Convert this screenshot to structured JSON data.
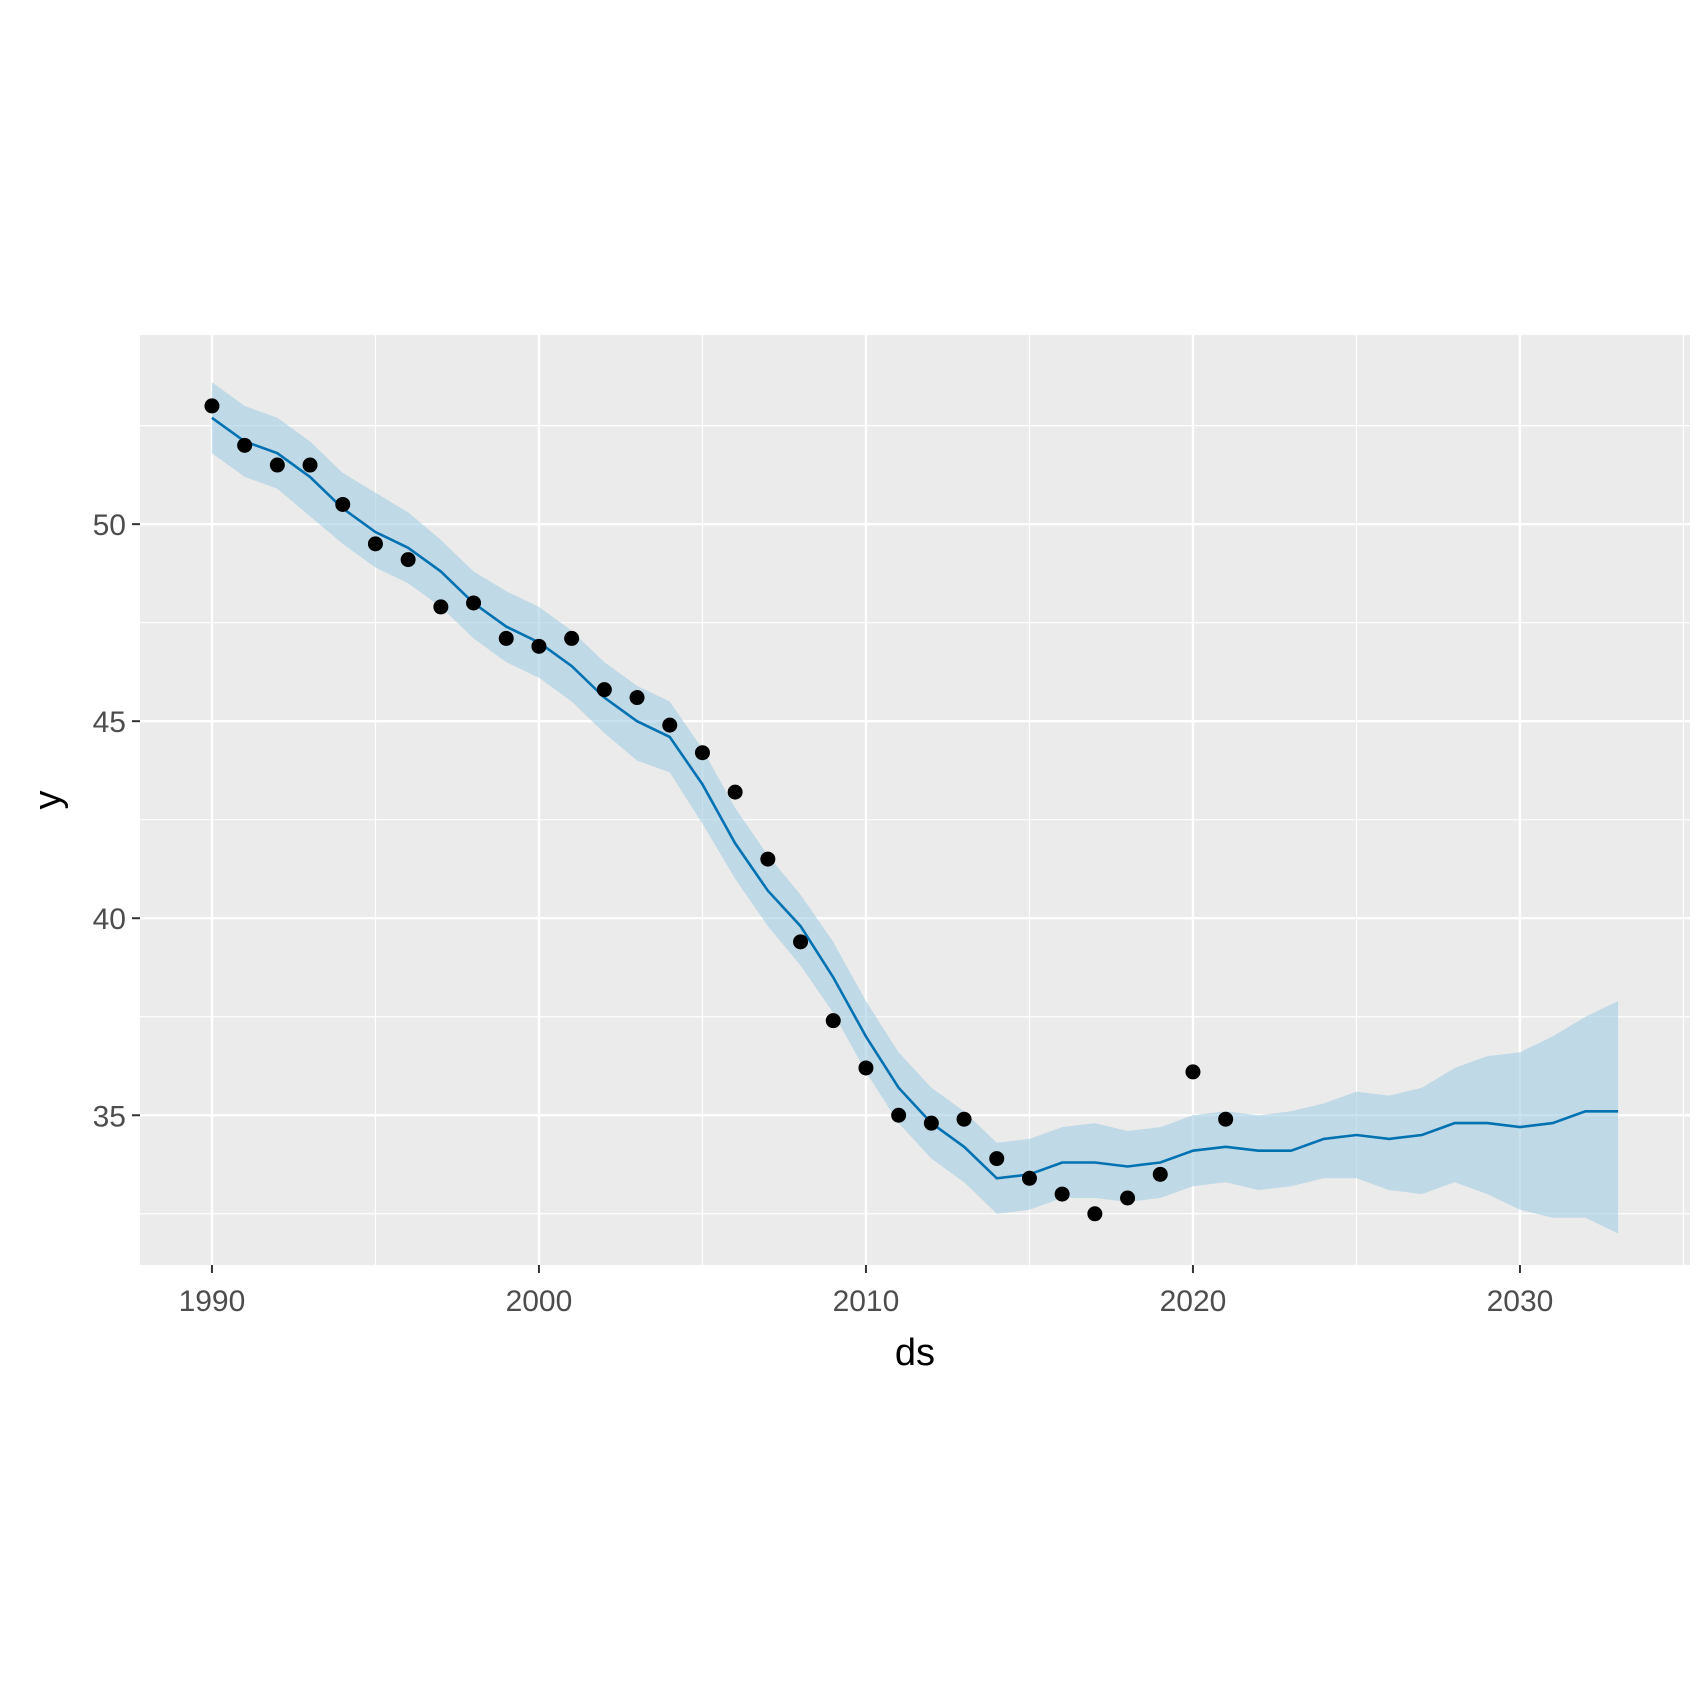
{
  "chart_data": {
    "type": "line",
    "title": "",
    "xlabel": "ds",
    "ylabel": "y",
    "xlim": [
      1987.8,
      2035.2
    ],
    "ylim": [
      31.2,
      54.8
    ],
    "x_ticks": [
      1990,
      2000,
      2010,
      2020,
      2030
    ],
    "x_tick_labels": [
      "1990",
      "2000",
      "2010",
      "2020",
      "2030"
    ],
    "y_ticks": [
      35,
      40,
      45,
      50
    ],
    "y_tick_labels": [
      "35",
      "40",
      "45",
      "50"
    ],
    "grid": true,
    "legend": "none",
    "colors": {
      "panel": "#ebebeb",
      "grid": "#ffffff",
      "forecast_line": "#0072b2",
      "interval_band": "#a6cee3",
      "points": "#000000"
    },
    "observed": {
      "x": [
        1990,
        1991,
        1992,
        1993,
        1994,
        1995,
        1996,
        1997,
        1998,
        1999,
        2000,
        2001,
        2002,
        2003,
        2004,
        2005,
        2006,
        2007,
        2008,
        2009,
        2010,
        2011,
        2012,
        2013,
        2014,
        2015,
        2016,
        2017,
        2018,
        2019,
        2020,
        2021
      ],
      "y": [
        53.0,
        52.0,
        51.5,
        51.5,
        50.5,
        49.5,
        49.1,
        47.9,
        48.0,
        47.1,
        46.9,
        47.1,
        45.8,
        45.6,
        44.9,
        44.2,
        43.2,
        41.5,
        39.4,
        37.4,
        36.2,
        35.0,
        34.8,
        34.9,
        33.9,
        33.4,
        33.0,
        32.5,
        32.9,
        33.5,
        36.1,
        34.9
      ]
    },
    "forecast": {
      "x": [
        1990,
        1991,
        1992,
        1993,
        1994,
        1995,
        1996,
        1997,
        1998,
        1999,
        2000,
        2001,
        2002,
        2003,
        2004,
        2005,
        2006,
        2007,
        2008,
        2009,
        2010,
        2011,
        2012,
        2013,
        2014,
        2015,
        2016,
        2017,
        2018,
        2019,
        2020,
        2021,
        2022,
        2023,
        2024,
        2025,
        2026,
        2027,
        2028,
        2029,
        2030,
        2031,
        2032,
        2033
      ],
      "yhat": [
        52.7,
        52.1,
        51.8,
        51.2,
        50.4,
        49.8,
        49.4,
        48.8,
        48.0,
        47.4,
        47.0,
        46.4,
        45.6,
        45.0,
        44.6,
        43.4,
        41.9,
        40.7,
        39.8,
        38.5,
        37.0,
        35.7,
        34.8,
        34.2,
        33.4,
        33.5,
        33.8,
        33.8,
        33.7,
        33.8,
        34.1,
        34.2,
        34.1,
        34.1,
        34.4,
        34.5,
        34.4,
        34.5,
        34.8,
        34.8,
        34.7,
        34.8,
        35.1,
        35.1
      ],
      "yhat_lower": [
        51.8,
        51.2,
        50.9,
        50.2,
        49.5,
        48.9,
        48.5,
        47.9,
        47.1,
        46.5,
        46.1,
        45.5,
        44.7,
        44.0,
        43.7,
        42.4,
        41.0,
        39.8,
        38.8,
        37.6,
        36.1,
        34.8,
        33.9,
        33.3,
        32.5,
        32.6,
        32.9,
        32.9,
        32.8,
        32.9,
        33.2,
        33.3,
        33.1,
        33.2,
        33.4,
        33.4,
        33.1,
        33.0,
        33.3,
        33.0,
        32.6,
        32.4,
        32.4,
        32.0
      ],
      "yhat_upper": [
        53.6,
        53.0,
        52.7,
        52.1,
        51.3,
        50.8,
        50.3,
        49.6,
        48.8,
        48.3,
        47.9,
        47.3,
        46.5,
        45.9,
        45.5,
        44.3,
        42.8,
        41.6,
        40.6,
        39.4,
        37.9,
        36.6,
        35.7,
        35.1,
        34.3,
        34.4,
        34.7,
        34.8,
        34.6,
        34.7,
        35.0,
        35.1,
        35.0,
        35.1,
        35.3,
        35.6,
        35.5,
        35.7,
        36.2,
        36.5,
        36.6,
        37.0,
        37.5,
        37.9
      ]
    }
  }
}
